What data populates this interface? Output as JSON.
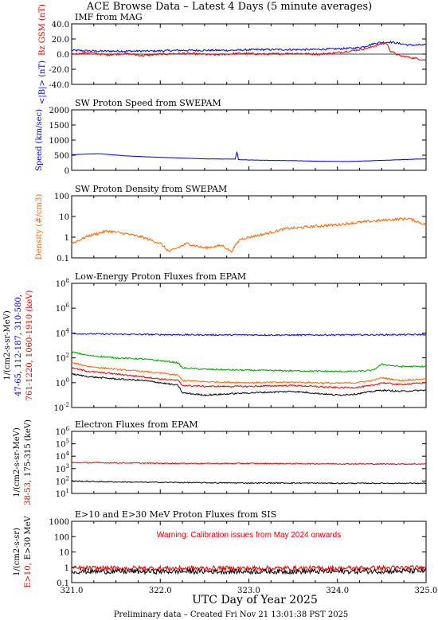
{
  "title": "ACE Browse Data – Latest 4 Days (5 minute averages)",
  "footer": "Preliminary data – Created Fri Nov 21 13:01:38 PST 2025",
  "xaxis": {
    "label": "UTC Day of Year 2025",
    "ticks": [
      "321.0",
      "322.0",
      "323.0",
      "324.0",
      "325.0"
    ],
    "xlim": [
      321.0,
      325.0
    ]
  },
  "colors": {
    "blue": "#0000e6",
    "red": "#e60000",
    "green": "#00a000",
    "orange": "#ff6600",
    "black": "#000000"
  },
  "chart_data": [
    {
      "type": "line",
      "title": "IMF from MAG",
      "scale": "linear",
      "ylim": [
        -40,
        40
      ],
      "yticks": [
        "40.0",
        "20.0",
        "0.0",
        "-20.0",
        "-40.0"
      ],
      "ylabel_parts": [
        {
          "text": "<|B|> (nT)",
          "color": "#0000e6"
        },
        {
          "text": "Bz GSM (nT)",
          "color": "#e60000"
        }
      ],
      "zero_line": true,
      "series": [
        {
          "name": "<|B|>",
          "color": "#0000e6",
          "x": [
            321.0,
            321.3,
            321.6,
            321.9,
            322.2,
            322.5,
            322.8,
            323.1,
            323.4,
            323.7,
            324.0,
            324.2,
            324.3,
            324.45,
            324.6,
            324.8,
            325.0
          ],
          "y": [
            5,
            4,
            4,
            4,
            5,
            5,
            5,
            6,
            6,
            6,
            7,
            8,
            10,
            15,
            16,
            12,
            12
          ]
        },
        {
          "name": "Bz GSM",
          "color": "#e60000",
          "x": [
            321.0,
            321.2,
            321.4,
            321.6,
            321.8,
            322.0,
            322.3,
            322.6,
            322.9,
            323.2,
            323.5,
            323.8,
            324.0,
            324.2,
            324.35,
            324.45,
            324.55,
            324.6,
            324.7,
            324.85,
            325.0
          ],
          "y": [
            0,
            2,
            -1,
            1,
            -2,
            0,
            1,
            -1,
            1,
            0,
            1,
            0,
            2,
            5,
            8,
            12,
            15,
            4,
            -2,
            -5,
            -8
          ]
        }
      ]
    },
    {
      "type": "line",
      "title": "SW Proton Speed from SWEPAM",
      "scale": "linear",
      "ylim": [
        0,
        2000
      ],
      "yticks": [
        "2000",
        "1500",
        "1000",
        "500",
        "0"
      ],
      "ylabel_parts": [
        {
          "text": "Speed (km/sec)",
          "color": "#0000e6"
        }
      ],
      "series": [
        {
          "name": "Speed",
          "color": "#0000e6",
          "x": [
            321.0,
            321.3,
            321.6,
            321.9,
            322.2,
            322.5,
            322.85,
            322.86,
            322.87,
            322.88,
            322.9,
            323.2,
            323.5,
            323.8,
            324.1,
            324.4,
            324.7,
            325.0
          ],
          "y": [
            520,
            550,
            480,
            440,
            410,
            380,
            370,
            600,
            600,
            360,
            350,
            330,
            320,
            300,
            290,
            320,
            350,
            380
          ]
        }
      ]
    },
    {
      "type": "line",
      "title": "SW Proton Density from SWEPAM",
      "scale": "log",
      "ylim": [
        0.1,
        100
      ],
      "yticks": [
        "100",
        "10",
        "1",
        "0.1"
      ],
      "ylabel_parts": [
        {
          "text": "Density (#/cm3)",
          "color": "#ff6600"
        }
      ],
      "series": [
        {
          "name": "Density",
          "color": "#ff6600",
          "x": [
            321.0,
            321.2,
            321.4,
            321.6,
            321.8,
            322.0,
            322.1,
            322.3,
            322.5,
            322.7,
            322.8,
            322.9,
            323.0,
            323.2,
            323.4,
            323.6,
            323.8,
            324.0,
            324.2,
            324.4,
            324.6,
            324.8,
            325.0
          ],
          "y": [
            0.5,
            1.2,
            2,
            1.5,
            1,
            0.5,
            0.2,
            0.5,
            0.3,
            0.4,
            0.2,
            0.8,
            1,
            1.5,
            2.5,
            3,
            3.5,
            4,
            5,
            6,
            7,
            8,
            4
          ]
        }
      ]
    },
    {
      "type": "line",
      "title": "Low-Energy Proton Fluxes from EPAM",
      "scale": "log",
      "ylim": [
        0.01,
        100000000
      ],
      "yticks": [
        "10^8",
        "10^6",
        "10^4",
        "10^2",
        "10^0",
        "10^-2"
      ],
      "ylabel_parts": [
        {
          "text": "1/(cm2-s-sr-MeV)",
          "color": "#000000"
        },
        {
          "text": "47-65, 112-187, 310-580,",
          "color": "#0000e6"
        },
        {
          "text": "761-1220, 1060-1910 (keV)",
          "color": "#e60000"
        }
      ],
      "series": [
        {
          "name": "47-65",
          "color": "#0000e6",
          "x": [
            321.0,
            321.5,
            322.0,
            322.5,
            323.0,
            323.5,
            324.0,
            324.5,
            325.0
          ],
          "y": [
            9000,
            8000,
            7500,
            7000,
            7000,
            6800,
            7000,
            7200,
            7500
          ]
        },
        {
          "name": "112-187",
          "color": "#00a000",
          "x": [
            321.0,
            321.2,
            321.5,
            321.8,
            322.0,
            322.2,
            322.25,
            322.5,
            323.0,
            323.5,
            324.0,
            324.2,
            324.4,
            324.5,
            324.7,
            325.0
          ],
          "y": [
            300,
            150,
            100,
            80,
            60,
            40,
            15,
            12,
            10,
            9,
            8,
            8,
            10,
            30,
            20,
            20
          ]
        },
        {
          "name": "310-580",
          "color": "#ff6600",
          "x": [
            321.0,
            321.2,
            321.5,
            321.8,
            322.0,
            322.2,
            322.25,
            322.5,
            323.0,
            323.5,
            324.0,
            324.2,
            324.4,
            324.5,
            324.7,
            325.0
          ],
          "y": [
            40,
            20,
            12,
            8,
            6,
            4,
            1.5,
            1.2,
            1,
            1.1,
            0.9,
            1,
            1.5,
            2.5,
            1.5,
            2
          ]
        },
        {
          "name": "761-1220",
          "color": "#e60000",
          "x": [
            321.0,
            321.2,
            321.5,
            321.8,
            322.0,
            322.2,
            322.25,
            322.5,
            323.0,
            323.5,
            324.0,
            324.2,
            324.4,
            324.5,
            324.7,
            325.0
          ],
          "y": [
            15,
            8,
            5,
            3,
            2,
            1.5,
            0.6,
            0.5,
            0.5,
            0.6,
            0.4,
            0.4,
            0.6,
            1,
            0.7,
            1
          ]
        },
        {
          "name": "1060-1910",
          "color": "#000000",
          "x": [
            321.0,
            321.2,
            321.5,
            321.8,
            322.0,
            322.2,
            322.25,
            322.5,
            323.0,
            323.5,
            324.0,
            324.2,
            324.4,
            324.5,
            324.7,
            325.0
          ],
          "y": [
            5,
            3,
            2,
            1.5,
            1,
            0.6,
            0.15,
            0.1,
            0.15,
            0.2,
            0.1,
            0.12,
            0.2,
            0.25,
            0.2,
            0.25
          ]
        }
      ]
    },
    {
      "type": "line",
      "title": "Electron Fluxes from EPAM",
      "scale": "log",
      "ylim": [
        1,
        10000000
      ],
      "yticks": [
        "10^6",
        "10^5",
        "10^4",
        "10^3",
        "10^2",
        "10^1"
      ],
      "ylabel_parts": [
        {
          "text": "1/(cm2-s-sr-MeV)",
          "color": "#000000"
        },
        {
          "text": "38-53,",
          "color": "#e60000"
        },
        {
          "text": "175-315 (keV)",
          "color": "#000000"
        }
      ],
      "series": [
        {
          "name": "38-53",
          "color": "#e60000",
          "x": [
            321.0,
            321.5,
            322.0,
            322.5,
            323.0,
            323.5,
            324.0,
            324.5,
            325.0
          ],
          "y": [
            3000,
            2800,
            2500,
            2400,
            2400,
            2300,
            2200,
            2100,
            2100
          ]
        },
        {
          "name": "175-315",
          "color": "#000000",
          "x": [
            321.0,
            321.5,
            322.0,
            322.5,
            323.0,
            323.5,
            324.0,
            324.5,
            325.0
          ],
          "y": [
            25,
            20,
            18,
            16,
            15,
            15,
            14,
            14,
            14
          ]
        }
      ]
    },
    {
      "type": "line",
      "title": "E>10 and E>30 MeV Proton Fluxes from SIS",
      "scale": "log",
      "ylim": [
        0.1,
        2000
      ],
      "yticks": [
        "1000",
        "100",
        "10",
        "1",
        "0.1"
      ],
      "ylabel_parts": [
        {
          "text": "1/(cm2-s-sr)",
          "color": "#000000"
        },
        {
          "text": "E>10,",
          "color": "#e60000"
        },
        {
          "text": "E>30 MeV",
          "color": "#000000"
        }
      ],
      "annotation": {
        "text": "Warning: Calibration issues from May 2024 onwards",
        "color": "#e60000"
      },
      "series": [
        {
          "name": "E>10",
          "color": "#e60000",
          "x": [
            321.0,
            322.0,
            323.0,
            324.0,
            325.0
          ],
          "y": [
            1,
            1,
            1,
            1,
            1.1
          ]
        },
        {
          "name": "E>30",
          "color": "#000000",
          "x": [
            321.0,
            322.0,
            323.0,
            324.0,
            325.0
          ],
          "y": [
            0.6,
            0.6,
            0.6,
            0.6,
            0.65
          ]
        }
      ]
    }
  ]
}
